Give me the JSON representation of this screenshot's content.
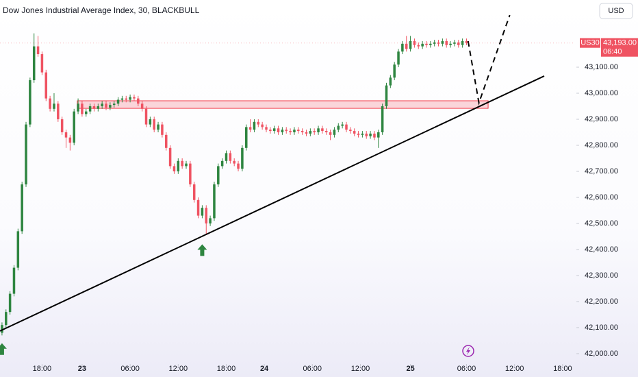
{
  "chart_data": {
    "type": "candlestick",
    "title": "Dow Jones Industrial Average Index, 30, BLACKBULL",
    "currency_button": "USD",
    "symbol_tag": "US30",
    "last_price_label": "43,193.00",
    "countdown_label": "06:40",
    "up_color": "#2e8540",
    "down_color": "#ef5362",
    "x": [
      0,
      1,
      2,
      3,
      4,
      5,
      6,
      7,
      8,
      9,
      10,
      11,
      12,
      13,
      14,
      15,
      16,
      17,
      18,
      19,
      20,
      21,
      22,
      23,
      24,
      25,
      26,
      27,
      28,
      29,
      30,
      31,
      32,
      33,
      34,
      35,
      36,
      37,
      38,
      39,
      40,
      41,
      42,
      43,
      44,
      45,
      46,
      47,
      48,
      49,
      50,
      51,
      52,
      53,
      54,
      55,
      56,
      57,
      58,
      59,
      60,
      61,
      62,
      63,
      64,
      65,
      66,
      67,
      68,
      69,
      70,
      71,
      72,
      73,
      74,
      75,
      76,
      77,
      78,
      79,
      80,
      81,
      82,
      83,
      84,
      85,
      86,
      87,
      88,
      89,
      90,
      91,
      92,
      93,
      94,
      95,
      96,
      97,
      98,
      99,
      100,
      101,
      102,
      103,
      104,
      105,
      106,
      107,
      108,
      109,
      110,
      111,
      112,
      113,
      114,
      115,
      116
    ],
    "open": [
      42080,
      42110,
      42160,
      42230,
      42330,
      42470,
      42650,
      42880,
      43050,
      43180,
      43150,
      43080,
      42980,
      42940,
      42960,
      42900,
      42850,
      42830,
      42810,
      42930,
      42960,
      42920,
      42930,
      42950,
      42940,
      42950,
      42960,
      42945,
      42955,
      42960,
      42975,
      42980,
      42975,
      42985,
      42980,
      42960,
      42940,
      42880,
      42900,
      42860,
      42880,
      42840,
      42790,
      42720,
      42700,
      42740,
      42720,
      42730,
      42650,
      42590,
      42530,
      42560,
      42500,
      42520,
      42650,
      42720,
      42740,
      42770,
      42740,
      42730,
      42710,
      42790,
      42870,
      42860,
      42890,
      42880,
      42870,
      42860,
      42855,
      42865,
      42850,
      42860,
      42855,
      42850,
      42860,
      42855,
      42850,
      42845,
      42855,
      42850,
      42865,
      42855,
      42850,
      42840,
      42860,
      42875,
      42880,
      42860,
      42855,
      42845,
      42840,
      42845,
      42835,
      42845,
      42830,
      42850,
      42950,
      43030,
      43060,
      43110,
      43160,
      43190,
      43170,
      43200,
      43185,
      43180,
      43190,
      43185,
      43190,
      43195,
      43190,
      43200,
      43185,
      43190,
      43195,
      43185,
      43200
    ],
    "high": [
      42120,
      42170,
      42240,
      42340,
      42480,
      42660,
      42890,
      43060,
      43230,
      43220,
      43160,
      43090,
      42990,
      43000,
      42970,
      42910,
      42860,
      42840,
      42940,
      42980,
      42970,
      42940,
      42960,
      42960,
      42960,
      42970,
      42970,
      42965,
      42970,
      42985,
      42990,
      42990,
      42995,
      42995,
      42990,
      42970,
      42950,
      42910,
      42910,
      42890,
      42890,
      42850,
      42800,
      42730,
      42750,
      42750,
      42740,
      42740,
      42660,
      42600,
      42570,
      42570,
      42530,
      42660,
      42730,
      42750,
      42780,
      42780,
      42750,
      42740,
      42800,
      42880,
      42900,
      42900,
      42900,
      42890,
      42880,
      42870,
      42875,
      42875,
      42870,
      42870,
      42865,
      42870,
      42870,
      42865,
      42860,
      42865,
      42865,
      42875,
      42875,
      42865,
      42860,
      42870,
      42885,
      42890,
      42890,
      42870,
      42865,
      42855,
      42855,
      42855,
      42855,
      42855,
      42860,
      42960,
      43040,
      43070,
      43120,
      43170,
      43200,
      43220,
      43220,
      43210,
      43195,
      43200,
      43200,
      43200,
      43205,
      43205,
      43210,
      43210,
      43200,
      43205,
      43205,
      43210,
      43210
    ],
    "low": [
      42070,
      42100,
      42150,
      42220,
      42320,
      42460,
      42640,
      42870,
      43040,
      43140,
      43070,
      42970,
      42930,
      42930,
      42890,
      42840,
      42790,
      42780,
      42800,
      42920,
      42910,
      42910,
      42920,
      42930,
      42930,
      42940,
      42935,
      42935,
      42945,
      42950,
      42965,
      42965,
      42965,
      42970,
      42950,
      42930,
      42870,
      42870,
      42850,
      42850,
      42830,
      42780,
      42710,
      42690,
      42690,
      42710,
      42710,
      42640,
      42580,
      42520,
      42520,
      42460,
      42490,
      42510,
      42640,
      42710,
      42730,
      42730,
      42720,
      42700,
      42700,
      42780,
      42850,
      42850,
      42870,
      42860,
      42850,
      42845,
      42845,
      42840,
      42840,
      42845,
      42840,
      42840,
      42845,
      42840,
      42835,
      42835,
      42840,
      42840,
      42845,
      42840,
      42820,
      42830,
      42850,
      42865,
      42850,
      42845,
      42835,
      42830,
      42830,
      42825,
      42825,
      42820,
      42790,
      42840,
      42940,
      43020,
      43050,
      43100,
      43150,
      43160,
      43160,
      43175,
      43170,
      43170,
      43175,
      43175,
      43180,
      43180,
      43180,
      43175,
      43175,
      43180,
      43175,
      43175,
      43185
    ],
    "close": [
      42110,
      42160,
      42230,
      42330,
      42470,
      42650,
      42880,
      43050,
      43180,
      43150,
      43080,
      42980,
      42940,
      42960,
      42900,
      42850,
      42830,
      42810,
      42930,
      42960,
      42920,
      42930,
      42950,
      42940,
      42950,
      42960,
      42945,
      42955,
      42960,
      42975,
      42980,
      42975,
      42985,
      42980,
      42960,
      42940,
      42880,
      42900,
      42860,
      42880,
      42840,
      42790,
      42720,
      42700,
      42740,
      42720,
      42730,
      42650,
      42590,
      42530,
      42560,
      42500,
      42520,
      42650,
      42720,
      42740,
      42770,
      42740,
      42730,
      42710,
      42790,
      42870,
      42860,
      42890,
      42880,
      42870,
      42860,
      42855,
      42865,
      42850,
      42860,
      42855,
      42850,
      42860,
      42855,
      42850,
      42845,
      42855,
      42850,
      42865,
      42855,
      42850,
      42840,
      42860,
      42875,
      42880,
      42860,
      42855,
      42845,
      42840,
      42845,
      42835,
      42845,
      42830,
      42850,
      42950,
      43030,
      43060,
      43110,
      43160,
      43190,
      43170,
      43200,
      43185,
      43180,
      43190,
      43185,
      43190,
      43195,
      43190,
      43200,
      43185,
      43190,
      43195,
      43185,
      43200,
      43193
    ],
    "xlim": [
      -0.5,
      143.1
    ],
    "xticks": [
      {
        "value": 10,
        "label": "18:00"
      },
      {
        "value": 20,
        "label": "23"
      },
      {
        "value": 32,
        "label": "06:00"
      },
      {
        "value": 44,
        "label": "12:00"
      },
      {
        "value": 56,
        "label": "18:00"
      },
      {
        "value": 65.5,
        "label": "24"
      },
      {
        "value": 77.5,
        "label": "06:00"
      },
      {
        "value": 89.5,
        "label": "12:00"
      },
      {
        "value": 102,
        "label": "25"
      },
      {
        "value": 116,
        "label": "06:00"
      },
      {
        "value": 128,
        "label": "12:00"
      },
      {
        "value": 140,
        "label": "18:00"
      }
    ],
    "ylim": [
      41963,
      43358
    ],
    "yticks": [
      {
        "value": 42000,
        "label": "42,000.00"
      },
      {
        "value": 42100,
        "label": "42,100.00"
      },
      {
        "value": 42200,
        "label": "42,200.00"
      },
      {
        "value": 42300,
        "label": "42,300.00"
      },
      {
        "value": 42400,
        "label": "42,400.00"
      },
      {
        "value": 42500,
        "label": "42,500.00"
      },
      {
        "value": 42600,
        "label": "42,600.00"
      },
      {
        "value": 42700,
        "label": "42,700.00"
      },
      {
        "value": 42800,
        "label": "42,800.00"
      },
      {
        "value": 42900,
        "label": "42,900.00"
      },
      {
        "value": 43000,
        "label": "43,000.00"
      },
      {
        "value": 43100,
        "label": "43,100.00"
      }
    ],
    "zone": {
      "x": [
        18.8,
        121.4
      ],
      "y": [
        42942,
        42971
      ],
      "color": "#f23645"
    },
    "trendline": {
      "x": [
        -0.5,
        135.4
      ],
      "y": [
        42087,
        43066
      ]
    },
    "projection": {
      "x": [
        116.4,
        119.1,
        126.8
      ],
      "y": [
        43200,
        42963,
        43300
      ]
    },
    "signals": {
      "x": [
        0,
        50
      ],
      "y": [
        42040,
        42420
      ]
    }
  }
}
